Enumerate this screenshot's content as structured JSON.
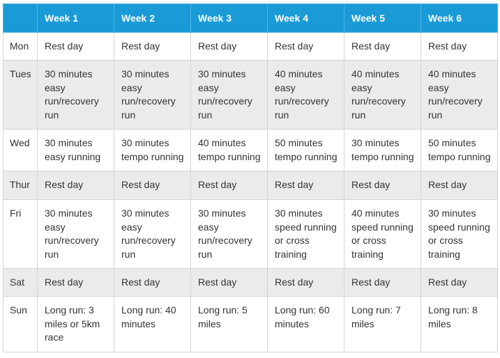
{
  "table": {
    "header": [
      "Week 1",
      "Week 2",
      "Week 3",
      "Week 4",
      "Week 5",
      "Week 6"
    ],
    "rows": [
      [
        "Mon",
        "Rest day",
        "Rest day",
        "Rest day",
        "Rest day",
        "Rest day",
        "Rest day"
      ],
      [
        "Tues",
        "30 minutes easy run/recovery run",
        "30 minutes easy run/recovery run",
        "30 minutes easy run/recovery run",
        "40 minutes easy run/recovery run",
        "40 minutes easy run/recovery run",
        "40 minutes easy run/recovery run"
      ],
      [
        "Wed",
        "30 minutes easy running",
        "30 minutes tempo running",
        "40 minutes tempo running",
        "50 minutes tempo running",
        "30 minutes tempo running",
        "50 minutes tempo running"
      ],
      [
        "Thur",
        "Rest day",
        "Rest day",
        "Rest day",
        "Rest day",
        "Rest day",
        "Rest day"
      ],
      [
        "Fri",
        "30 minutes easy run/recovery run",
        "30 minutes easy run/recovery run",
        "30 minutes easy run/recovery run",
        "30 minutes speed running or cross training",
        "40 minutes speed running or cross training",
        "30 minutes speed running or cross training"
      ],
      [
        "Sat",
        "Rest day",
        "Rest day",
        "Rest day",
        "Rest day",
        "Rest day",
        "Rest day"
      ],
      [
        "Sun",
        "Long run: 3 miles or 5km race",
        "Long run: 40 minutes",
        "Long run: 5 miles",
        "Long run: 60 minutes",
        "Long run: 7 miles",
        "Long run: 8 miles"
      ]
    ]
  }
}
